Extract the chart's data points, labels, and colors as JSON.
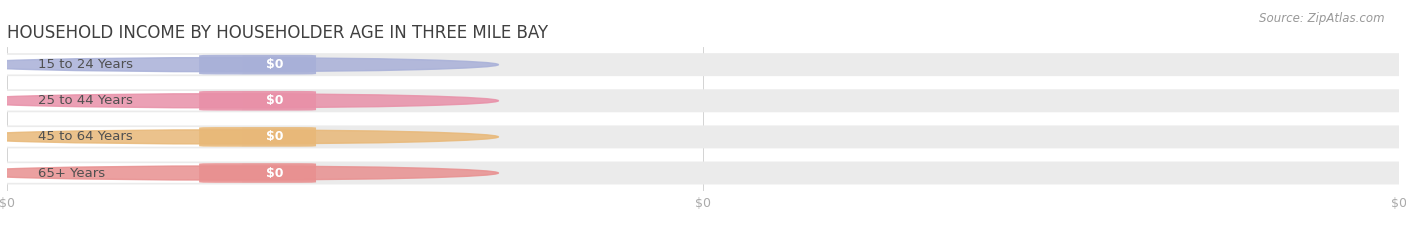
{
  "title": "HOUSEHOLD INCOME BY HOUSEHOLDER AGE IN THREE MILE BAY",
  "source": "Source: ZipAtlas.com",
  "categories": [
    "15 to 24 Years",
    "25 to 44 Years",
    "45 to 64 Years",
    "65+ Years"
  ],
  "values": [
    0,
    0,
    0,
    0
  ],
  "bar_colors": [
    "#a8b0d8",
    "#e890a8",
    "#e8b878",
    "#e89090"
  ],
  "bar_bg_color": "#ebebeb",
  "bar_inner_color": "#f8f8f8",
  "title_color": "#404040",
  "label_color": "#505050",
  "value_label_color": "#ffffff",
  "tick_label_color": "#aaaaaa",
  "background_color": "#ffffff",
  "title_fontsize": 12,
  "label_fontsize": 9.5,
  "tick_fontsize": 9,
  "source_fontsize": 8.5
}
